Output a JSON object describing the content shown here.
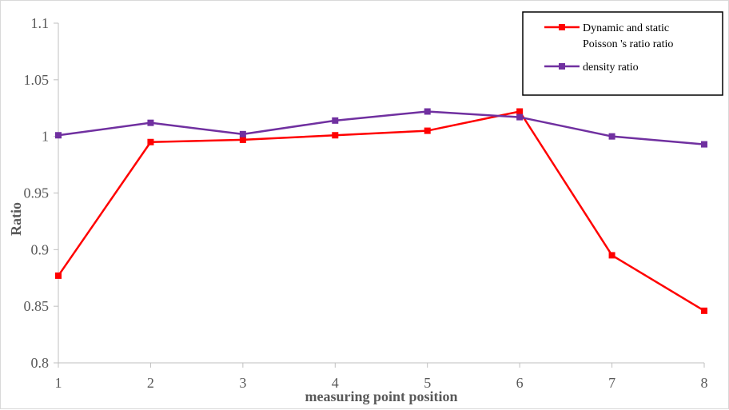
{
  "chart_data": {
    "type": "line",
    "title": "",
    "xlabel": "measuring point position",
    "ylabel": "Ratio",
    "x": [
      1,
      2,
      3,
      4,
      5,
      6,
      7,
      8
    ],
    "xlim": [
      1,
      8
    ],
    "ylim": [
      0.8,
      1.1
    ],
    "yticks": [
      "0.8",
      "0.85",
      "0.9",
      "0.95",
      "1",
      "1.05",
      "1.1"
    ],
    "xticks": [
      "1",
      "2",
      "3",
      "4",
      "5",
      "6",
      "7",
      "8"
    ],
    "grid": false,
    "legend_position": "top-right",
    "series": [
      {
        "name": "Dynamic and static Poisson 's ratio ratio",
        "legend_lines": [
          "Dynamic and static",
          "Poisson 's ratio ratio"
        ],
        "color": "#ff0000",
        "marker": "square",
        "values": [
          0.877,
          0.995,
          0.997,
          1.001,
          1.005,
          1.022,
          0.895,
          0.846
        ]
      },
      {
        "name": "density ratio",
        "legend_lines": [
          "density ratio"
        ],
        "color": "#7030a0",
        "marker": "square",
        "values": [
          1.001,
          1.012,
          1.002,
          1.014,
          1.022,
          1.017,
          1.0,
          0.993
        ]
      }
    ]
  }
}
